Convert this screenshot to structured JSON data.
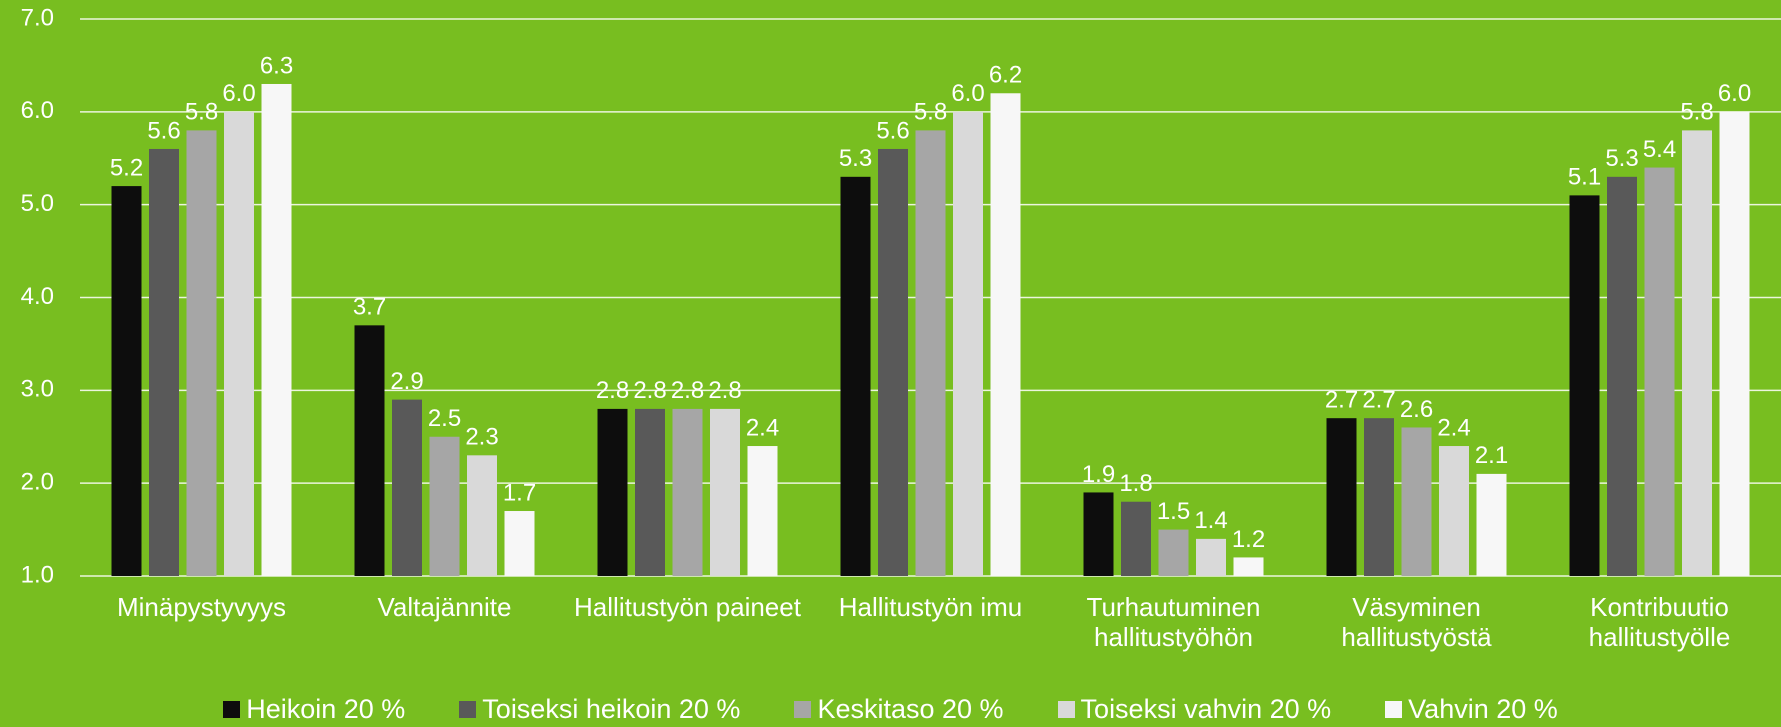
{
  "chart_data": {
    "type": "bar",
    "categories": [
      "Minäpystyvyys",
      "Valtajännite",
      "Hallitustyön paineet",
      "Hallitustyön imu",
      "Turhautuminen hallitustyöhön",
      "Väsyminen hallitustyöstä",
      "Kontribuutio hallitustyölle"
    ],
    "series": [
      {
        "name": "Heikoin 20 %",
        "color": "#0d0d0d",
        "values": [
          5.2,
          3.7,
          2.8,
          5.3,
          1.9,
          2.7,
          5.1
        ],
        "value_labels": [
          "5.2",
          "3.7",
          "2.8",
          "5.3",
          "1.9",
          "2.7",
          "5.1"
        ]
      },
      {
        "name": "Toiseksi heikoin 20 %",
        "color": "#595959",
        "values": [
          5.6,
          2.9,
          2.8,
          5.6,
          1.8,
          2.7,
          5.3
        ],
        "value_labels": [
          "5.6",
          "2.9",
          "2.8",
          "5.6",
          "1.8",
          "2.7",
          "5.3"
        ]
      },
      {
        "name": "Keskitaso 20 %",
        "color": "#a6a6a6",
        "values": [
          5.8,
          2.5,
          2.8,
          5.8,
          1.5,
          2.6,
          5.4
        ],
        "value_labels": [
          "5.8",
          "2.5",
          "2.8",
          "5.8",
          "1.5",
          "2.6",
          "5.4"
        ]
      },
      {
        "name": "Toiseksi vahvin 20 %",
        "color": "#d9d9d9",
        "values": [
          6.0,
          2.3,
          2.8,
          6.0,
          1.4,
          2.4,
          5.8
        ],
        "value_labels": [
          "6.0",
          "2.3",
          "2.8",
          "6.0",
          "1.4",
          "2.4",
          "5.8"
        ]
      },
      {
        "name": "Vahvin 20 %",
        "color": "#f7f7f7",
        "values": [
          6.3,
          1.7,
          2.4,
          6.2,
          1.2,
          2.1,
          6.0
        ],
        "value_labels": [
          "6.3",
          "1.7",
          "2.4",
          "6.2",
          "1.2",
          "2.1",
          "6.0"
        ]
      }
    ],
    "ylim": [
      1,
      7
    ],
    "yticks": [
      {
        "value": 1,
        "label": "1.0"
      },
      {
        "value": 2,
        "label": "2.0"
      },
      {
        "value": 3,
        "label": "3.0"
      },
      {
        "value": 4,
        "label": "4.0"
      },
      {
        "value": 5,
        "label": "5.0"
      },
      {
        "value": 6,
        "label": "6.0"
      },
      {
        "value": 7,
        "label": "7.0"
      }
    ],
    "grid": true,
    "legend": "bottom",
    "background": "#78be20"
  }
}
